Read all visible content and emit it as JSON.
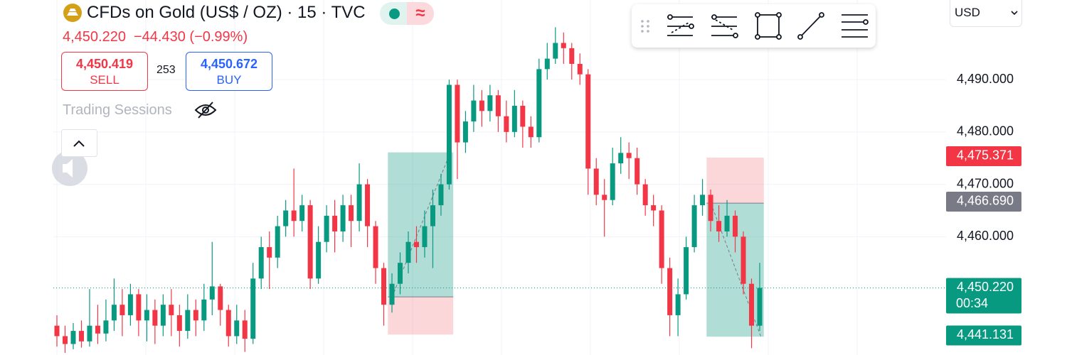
{
  "header": {
    "symbol": "CFDs on Gold (US$ / OZ) · 15 · TVC",
    "badge": "≈",
    "last": "4,450.220",
    "change": "−44.430 (−0.99%)",
    "sell_price": "4,450.419",
    "sell": "SELL",
    "spread": "253",
    "buy_price": "4,450.672",
    "buy": "BUY",
    "sessions": "Trading Sessions",
    "currency": "USD"
  },
  "chart_data": {
    "type": "candlestick",
    "open": [
      4443,
      4441,
      4439.5,
      4442,
      4440,
      4443,
      4441.5,
      4444,
      4447,
      4445,
      4449,
      4444,
      4446,
      4443,
      4447,
      4445,
      4442,
      4446,
      4444,
      4448,
      4450.5,
      4446,
      4441,
      4444,
      4440.5,
      4452,
      4458,
      4456,
      4462,
      4465,
      4463,
      4466,
      4452,
      4459,
      4464,
      4461,
      4466,
      4463,
      4470,
      4462,
      4454,
      4447,
      4451,
      4455,
      4459,
      4458,
      4462,
      4466,
      4470,
      4489,
      4478,
      4482,
      4486,
      4484,
      4487,
      4483,
      4480,
      4485,
      4481,
      4479,
      4492,
      4494,
      4497,
      4496,
      4493,
      4491,
      4473,
      4468,
      4467,
      4474,
      4476,
      4475,
      4470,
      4466,
      4465,
      4454,
      4445,
      4449,
      4458,
      4466,
      4468,
      4463,
      4461,
      4464,
      4460,
      4451,
      4443
    ],
    "high": [
      4445,
      4443,
      4443.5,
      4444,
      4450,
      4447,
      4448,
      4452,
      4450,
      4451,
      4450,
      4449,
      4448,
      4449,
      4450,
      4447,
      4449,
      4448,
      4451,
      4459,
      4451,
      4447,
      4447,
      4446,
      4455,
      4460,
      4461,
      4464,
      4467,
      4473,
      4468,
      4467,
      4462,
      4466,
      4467,
      4468,
      4468,
      4474,
      4471,
      4463,
      4455,
      4453,
      4457,
      4461,
      4462,
      4465,
      4469,
      4472,
      4490,
      4490,
      4484,
      4489,
      4488,
      4489,
      4488,
      4486,
      4488,
      4486,
      4483,
      4494,
      4497,
      4500,
      4499,
      4497,
      4495,
      4492,
      4475,
      4471,
      4477,
      4479,
      4478,
      4477,
      4471,
      4468,
      4466,
      4456,
      4452,
      4460,
      4468,
      4471,
      4469,
      4466,
      4467,
      4465,
      4461,
      4452,
      4455
    ],
    "low": [
      4439,
      4437.8,
      4438.5,
      4438.8,
      4439,
      4439.5,
      4440,
      4442,
      4441,
      4443,
      4441,
      4440,
      4439.5,
      4441,
      4441,
      4439,
      4440.5,
      4441,
      4442,
      4445,
      4443,
      4439,
      4439.5,
      4438,
      4439.5,
      4450,
      4450,
      4454,
      4460,
      4460,
      4461,
      4450,
      4451,
      4457,
      4457,
      4459,
      4458,
      4461,
      4458,
      4451,
      4443,
      4445.5,
      4449,
      4453,
      4455,
      4456,
      4454,
      4464,
      4469,
      4471,
      4476,
      4480,
      4481,
      4482,
      4480,
      4478,
      4479,
      4477,
      4477,
      4478,
      4490,
      4493,
      4493,
      4490,
      4489,
      4468,
      4466,
      4460,
      4466,
      4472,
      4471,
      4468,
      4464,
      4462,
      4451,
      4441,
      4441,
      4448,
      4457,
      4464,
      4461,
      4459,
      4460,
      4457,
      4449,
      4438.7,
      4442
    ],
    "close": [
      4441,
      4439.5,
      4442,
      4440,
      4443,
      4441.5,
      4444,
      4447,
      4445,
      4449,
      4444,
      4446,
      4443,
      4447,
      4445,
      4442,
      4446,
      4444,
      4448,
      4450.5,
      4446,
      4441,
      4444,
      4440.5,
      4452,
      4458,
      4456,
      4462,
      4465,
      4463,
      4466,
      4452,
      4459,
      4464,
      4461,
      4466,
      4463,
      4470,
      4462,
      4454,
      4447,
      4451,
      4455,
      4459,
      4458,
      4462,
      4466,
      4470,
      4489,
      4478,
      4482,
      4486,
      4484,
      4487,
      4483,
      4480,
      4485,
      4481,
      4479,
      4492,
      4494,
      4497,
      4496,
      4493,
      4491,
      4473,
      4468,
      4467,
      4474,
      4476,
      4475,
      4470,
      4466,
      4465,
      4454,
      4445,
      4449,
      4458,
      4466,
      4468,
      4463,
      4461,
      4464,
      4460,
      4451,
      4443,
      4450.22
    ],
    "up_color": "#089981",
    "down_color": "#f23645",
    "ylim": [
      4437.4,
      4505.2
    ],
    "yticks": [
      {
        "value": 4460,
        "label": "4,460.000"
      },
      {
        "value": 4470,
        "label": "4,470.000"
      },
      {
        "value": 4480,
        "label": "4,480.000"
      },
      {
        "value": 4490,
        "label": "4,490.000"
      }
    ],
    "grid": true,
    "current_price": 4450.22,
    "price_labels": [
      {
        "value": 4475.371,
        "label": "4,475.371",
        "color": "#f23645"
      },
      {
        "value": 4466.69,
        "label": "4,466.690",
        "color": "#787b86"
      },
      {
        "value": 4450.22,
        "label": "4,450.220",
        "sublabel": "00:34",
        "color": "#089981"
      },
      {
        "value": 4441.131,
        "label": "4,441.131",
        "color": "#089981"
      }
    ],
    "positions": [
      {
        "side": "long",
        "start": 41,
        "end": 48,
        "entry": 4448.5,
        "target": 4476.1,
        "stop": 4441.3
      },
      {
        "side": "short",
        "start": 80,
        "end": 86,
        "entry": 4466.4,
        "target": 4440.9,
        "stop": 4475.1
      }
    ]
  }
}
